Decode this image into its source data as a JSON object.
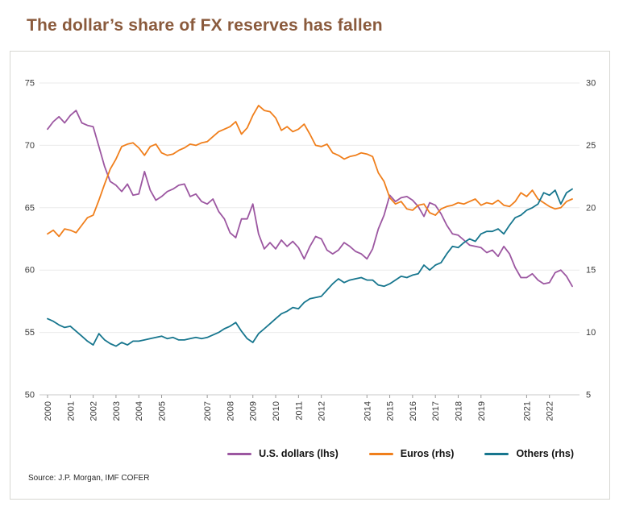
{
  "colors": {
    "title": "#8a5a3c",
    "grid": "#ebebeb",
    "axis_line": "#c9c9c9",
    "axis_text": "#3a3a3a"
  },
  "chart_data": {
    "type": "line",
    "title": "The dollar’s share of FX reserves has fallen",
    "source": "Source: J.P. Morgan, IMF COFER",
    "x_start_year": 2000,
    "points_per_year": 4,
    "x_tick_years": [
      2000,
      2001,
      2002,
      2003,
      2004,
      2005,
      2007,
      2008,
      2009,
      2010,
      2011,
      2012,
      2014,
      2015,
      2016,
      2017,
      2018,
      2019,
      2021,
      2022
    ],
    "left_axis": {
      "min": 50,
      "max": 75,
      "ticks": [
        75,
        70,
        65,
        60,
        55,
        50
      ]
    },
    "right_axis": {
      "min": 5,
      "max": 30,
      "ticks": [
        30,
        25,
        20,
        15,
        10,
        5
      ]
    },
    "grid": true,
    "legend_position": "bottom",
    "series": [
      {
        "id": "usd",
        "name": "U.S. dollars (lhs)",
        "axis": "left",
        "color": "#9c57a1",
        "values": [
          71.3,
          71.9,
          72.3,
          71.8,
          72.4,
          72.8,
          71.8,
          71.6,
          71.5,
          69.9,
          68.3,
          67.1,
          66.8,
          66.3,
          66.9,
          66.0,
          66.1,
          67.9,
          66.4,
          65.6,
          65.9,
          66.3,
          66.5,
          66.8,
          66.9,
          65.9,
          66.1,
          65.5,
          65.3,
          65.7,
          64.7,
          64.1,
          63.0,
          62.6,
          64.1,
          64.1,
          65.3,
          62.9,
          61.7,
          62.2,
          61.7,
          62.4,
          61.9,
          62.3,
          61.8,
          60.9,
          61.9,
          62.7,
          62.5,
          61.6,
          61.3,
          61.6,
          62.2,
          61.9,
          61.5,
          61.3,
          60.9,
          61.7,
          63.3,
          64.4,
          66.0,
          65.5,
          65.8,
          65.9,
          65.6,
          65.1,
          64.3,
          65.4,
          65.2,
          64.5,
          63.6,
          62.9,
          62.8,
          62.4,
          62.0,
          61.9,
          61.8,
          61.4,
          61.6,
          61.1,
          61.9,
          61.3,
          60.2,
          59.4,
          59.4,
          59.7,
          59.2,
          58.9,
          59.0,
          59.8,
          60.0,
          59.5,
          58.7
        ]
      },
      {
        "id": "euros",
        "name": "Euros (rhs)",
        "axis": "right",
        "color": "#f07f1c",
        "values": [
          17.9,
          18.2,
          17.7,
          18.3,
          18.2,
          18.0,
          18.6,
          19.2,
          19.4,
          20.6,
          21.9,
          23.1,
          23.9,
          24.9,
          25.1,
          25.2,
          24.8,
          24.2,
          24.9,
          25.1,
          24.4,
          24.2,
          24.3,
          24.6,
          24.8,
          25.1,
          25.0,
          25.2,
          25.3,
          25.7,
          26.1,
          26.3,
          26.5,
          26.9,
          25.9,
          26.4,
          27.4,
          28.2,
          27.8,
          27.7,
          27.2,
          26.2,
          26.5,
          26.1,
          26.3,
          26.7,
          25.9,
          25.0,
          24.9,
          25.1,
          24.4,
          24.2,
          23.9,
          24.1,
          24.2,
          24.4,
          24.3,
          24.1,
          22.8,
          22.1,
          20.8,
          20.3,
          20.5,
          19.9,
          19.8,
          20.2,
          20.3,
          19.6,
          19.4,
          19.9,
          20.1,
          20.2,
          20.4,
          20.3,
          20.5,
          20.7,
          20.2,
          20.4,
          20.3,
          20.6,
          20.2,
          20.1,
          20.5,
          21.2,
          20.9,
          21.4,
          20.7,
          20.4,
          20.1,
          19.9,
          20.0,
          20.5,
          20.7
        ]
      },
      {
        "id": "others",
        "name": "Others (rhs)",
        "axis": "right",
        "color": "#17768e",
        "values": [
          11.1,
          10.9,
          10.6,
          10.4,
          10.5,
          10.1,
          9.7,
          9.3,
          9.0,
          9.9,
          9.4,
          9.1,
          8.9,
          9.2,
          9.0,
          9.3,
          9.3,
          9.4,
          9.5,
          9.6,
          9.7,
          9.5,
          9.6,
          9.4,
          9.4,
          9.5,
          9.6,
          9.5,
          9.6,
          9.8,
          10.0,
          10.3,
          10.5,
          10.8,
          10.1,
          9.5,
          9.2,
          9.9,
          10.3,
          10.7,
          11.1,
          11.5,
          11.7,
          12.0,
          11.9,
          12.4,
          12.7,
          12.8,
          12.9,
          13.4,
          13.9,
          14.3,
          14.0,
          14.2,
          14.3,
          14.4,
          14.2,
          14.2,
          13.8,
          13.7,
          13.9,
          14.2,
          14.5,
          14.4,
          14.6,
          14.7,
          15.4,
          15.0,
          15.4,
          15.6,
          16.3,
          16.9,
          16.8,
          17.2,
          17.5,
          17.3,
          17.9,
          18.1,
          18.1,
          18.3,
          17.9,
          18.6,
          19.2,
          19.4,
          19.8,
          20.0,
          20.3,
          21.2,
          21.0,
          21.4,
          20.3,
          21.2,
          21.5
        ]
      }
    ]
  }
}
